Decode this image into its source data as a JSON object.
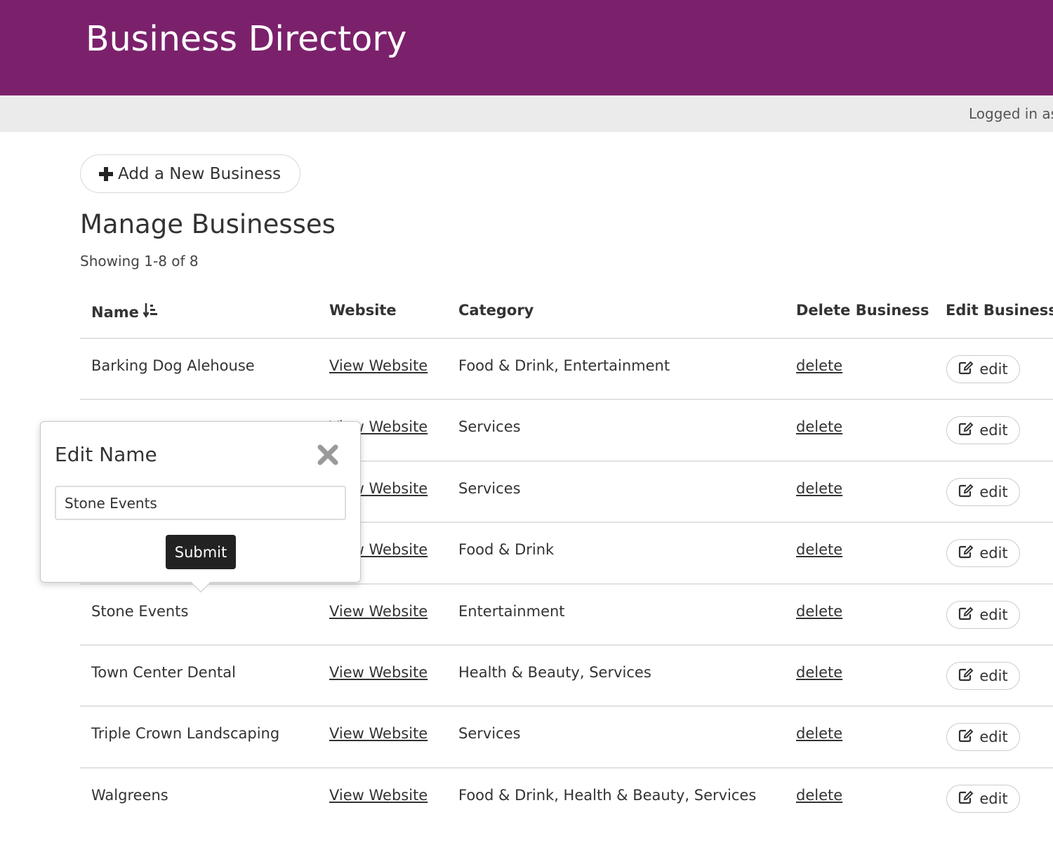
{
  "header": {
    "title": "Business Directory",
    "accent_color": "#7b216c"
  },
  "user_bar": {
    "status": "Logged in as"
  },
  "toolbar": {
    "add_label": "Add a New Business",
    "add_icon": "plus-icon"
  },
  "main": {
    "heading": "Manage Businesses",
    "count": "Showing 1-8 of 8"
  },
  "table": {
    "columns": {
      "name": "Name",
      "website": "Website",
      "category": "Category",
      "delete": "Delete Business",
      "edit": "Edit Business"
    },
    "sort_icon": "sort-ascending-icon",
    "rows": [
      {
        "name": "Barking Dog Alehouse",
        "website": "View Website",
        "category": "Food & Drink, Entertainment",
        "delete": "delete",
        "edit": "edit"
      },
      {
        "name": "",
        "website": "View Website",
        "category": "Services",
        "delete": "delete",
        "edit": "edit"
      },
      {
        "name": "",
        "website": "View Website",
        "category": "Services",
        "delete": "delete",
        "edit": "edit"
      },
      {
        "name": "",
        "website": "View Website",
        "category": "Food & Drink",
        "delete": "delete",
        "edit": "edit"
      },
      {
        "name": "Stone Events",
        "website": "View Website",
        "category": "Entertainment",
        "delete": "delete",
        "edit": "edit"
      },
      {
        "name": "Town Center Dental",
        "website": "View Website",
        "category": "Health & Beauty, Services",
        "delete": "delete",
        "edit": "edit"
      },
      {
        "name": "Triple Crown Landscaping",
        "website": "View Website",
        "category": "Services",
        "delete": "delete",
        "edit": "edit"
      },
      {
        "name": "Walgreens",
        "website": "View Website",
        "category": "Food & Drink, Health & Beauty, Services",
        "delete": "delete",
        "edit": "edit"
      }
    ]
  },
  "popover": {
    "title": "Edit Name",
    "input_value": "Stone Events",
    "submit_label": "Submit",
    "close_icon": "close-icon"
  }
}
